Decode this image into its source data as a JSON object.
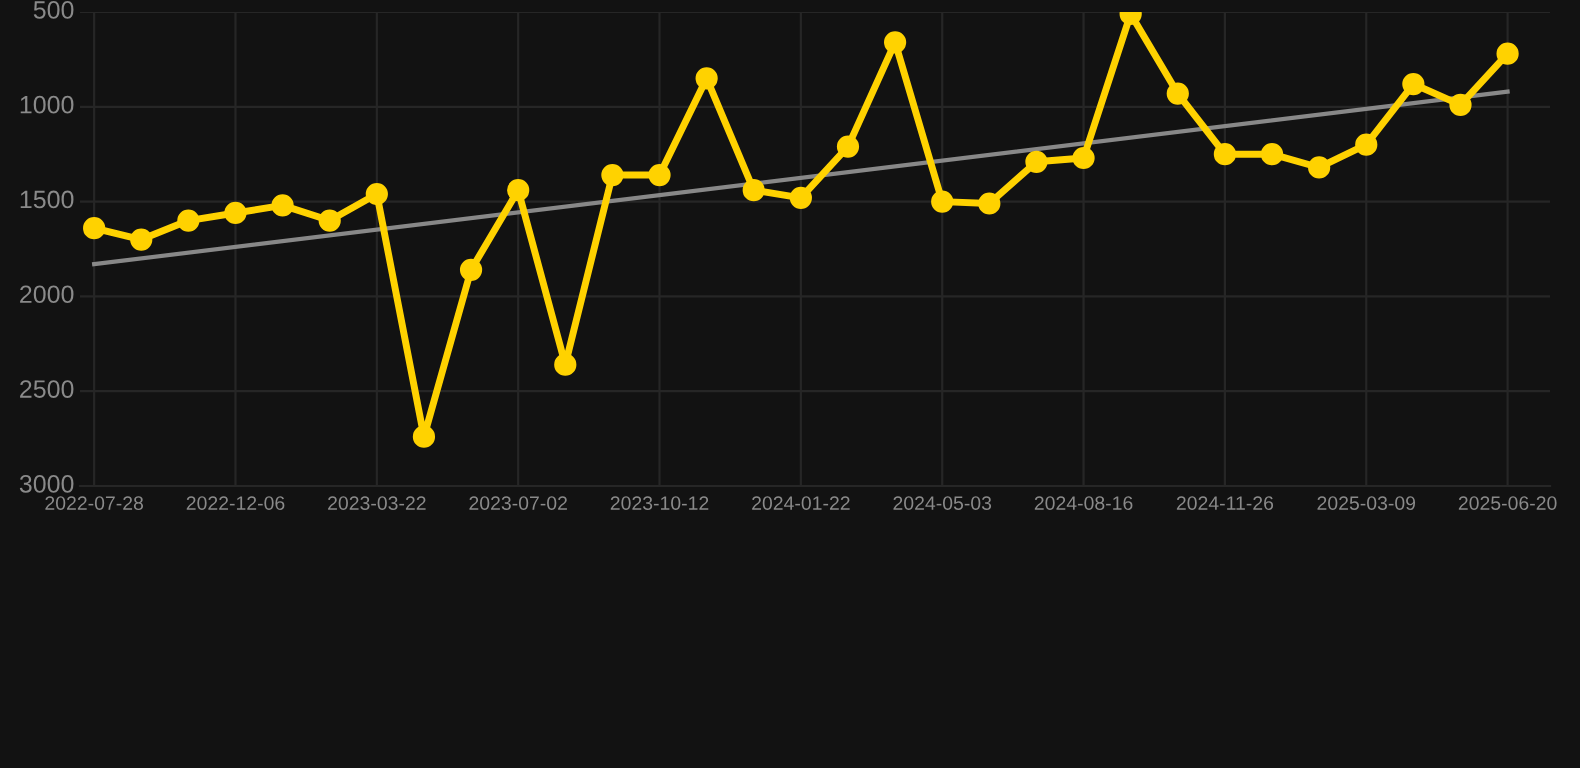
{
  "chart_data": {
    "type": "line",
    "categories": [
      "2022-07-28",
      null,
      null,
      "2022-12-06",
      null,
      null,
      "2023-03-22",
      null,
      null,
      "2023-07-02",
      null,
      null,
      "2023-10-12",
      null,
      null,
      "2024-01-22",
      null,
      null,
      "2024-05-03",
      null,
      null,
      "2024-08-16",
      null,
      null,
      "2024-11-26",
      null,
      null,
      "2025-03-09",
      null,
      null,
      "2025-06-20"
    ],
    "series": [
      {
        "color": "#ffd200",
        "marker": "circle",
        "values": [
          1640,
          1700,
          1600,
          1560,
          1520,
          1600,
          1460,
          2740,
          1860,
          1440,
          2360,
          1360,
          1360,
          850,
          1440,
          1480,
          1210,
          660,
          1500,
          1510,
          1290,
          1270,
          510,
          930,
          1250,
          1250,
          1320,
          1200,
          880,
          990,
          720
        ]
      },
      {
        "color": "#888888",
        "marker": "none",
        "values": [
          1830,
          null,
          null,
          null,
          null,
          null,
          null,
          null,
          null,
          null,
          null,
          null,
          null,
          null,
          null,
          null,
          null,
          null,
          null,
          null,
          null,
          null,
          null,
          null,
          null,
          null,
          null,
          null,
          null,
          null,
          920
        ]
      }
    ],
    "ylim": [
      3000,
      500
    ],
    "yticks": [
      500,
      1000,
      1500,
      2000,
      2500,
      3000
    ],
    "grid": true
  }
}
